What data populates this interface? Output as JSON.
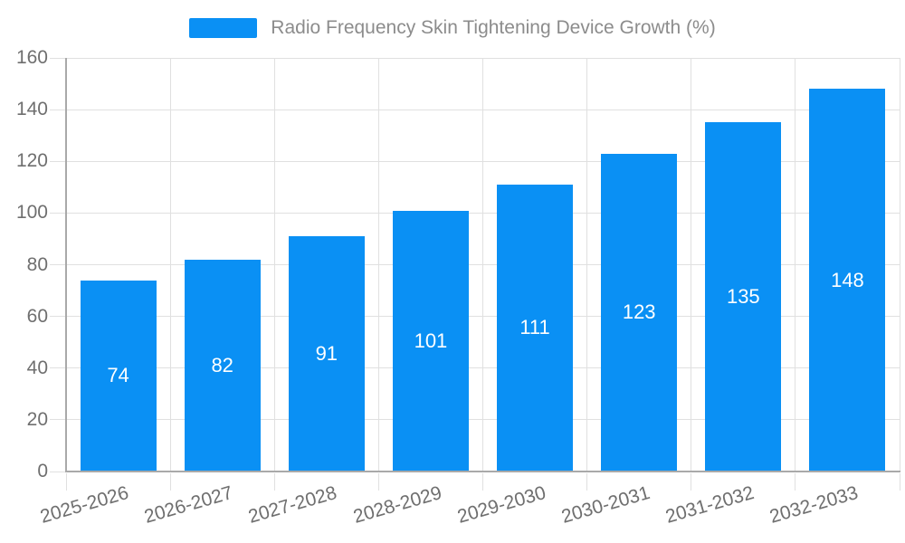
{
  "legend": {
    "label": "Radio Frequency Skin Tightening Device Growth (%)"
  },
  "chart_data": {
    "type": "bar",
    "title": "Radio Frequency Skin Tightening Device Growth (%)",
    "categories": [
      "2025-2026",
      "2026-2027",
      "2027-2028",
      "2028-2029",
      "2029-2030",
      "2030-2031",
      "2031-2032",
      "2032-2033"
    ],
    "values": [
      74,
      82,
      91,
      101,
      111,
      123,
      135,
      148
    ],
    "value_labels": [
      "74",
      "82",
      "91",
      "101",
      "111",
      "123",
      "135",
      "148"
    ],
    "xlabel": "",
    "ylabel": "",
    "ylim": [
      0,
      160
    ],
    "yticks": [
      0,
      20,
      40,
      60,
      80,
      100,
      120,
      140,
      160
    ],
    "grid": true,
    "legend_position": "top-center",
    "value_label_position": "inside-center",
    "style": {
      "bar_color": "#0a90f4",
      "grid_color": "#e0e0e0",
      "axis_color": "#a9a9a9",
      "axis_text_color": "#6f6f6f",
      "legend_text_color": "#8c8c8c",
      "value_label_color": "#ffffff",
      "background_color": "#ffffff"
    }
  }
}
